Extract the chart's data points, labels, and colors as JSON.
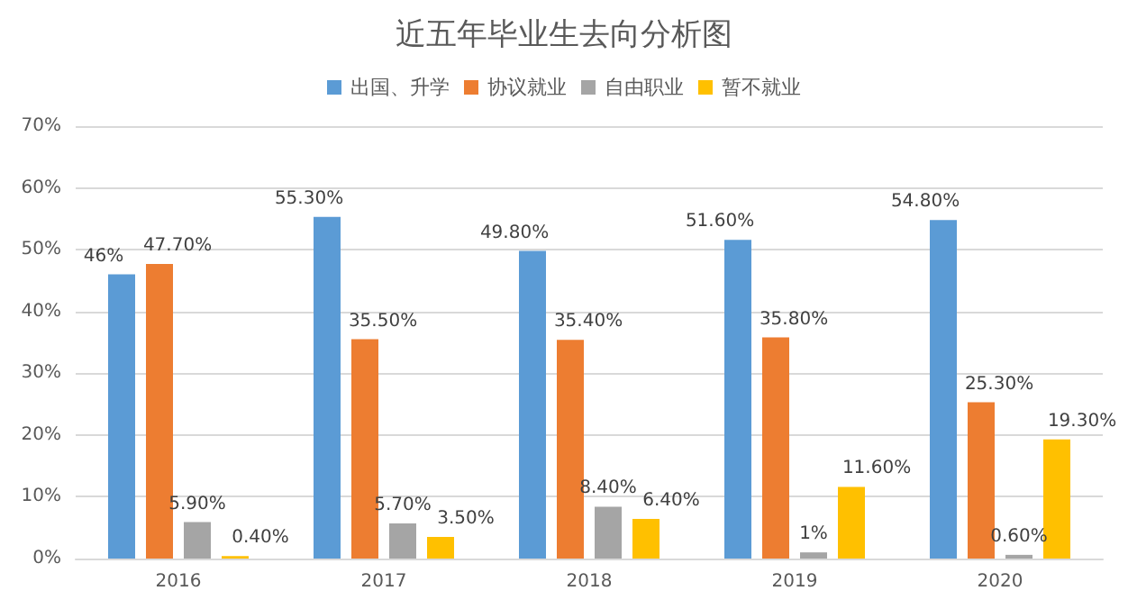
{
  "chart_data": {
    "type": "bar",
    "title": "近五年毕业生去向分析图",
    "categories": [
      "2016",
      "2017",
      "2018",
      "2019",
      "2020"
    ],
    "series": [
      {
        "name": "出国、升学",
        "color": "#5b9bd5",
        "values": [
          46,
          55.3,
          49.8,
          51.6,
          54.8
        ],
        "value_labels": [
          "46%",
          "55.30%",
          "49.80%",
          "51.60%",
          "54.80%"
        ]
      },
      {
        "name": "协议就业",
        "color": "#ed7d31",
        "values": [
          47.7,
          35.5,
          35.4,
          35.8,
          25.3
        ],
        "value_labels": [
          "47.70%",
          "35.50%",
          "35.40%",
          "35.80%",
          "25.30%"
        ]
      },
      {
        "name": "自由职业",
        "color": "#a5a5a5",
        "values": [
          5.9,
          5.7,
          8.4,
          1,
          0.6
        ],
        "value_labels": [
          "5.90%",
          "5.70%",
          "8.40%",
          "1%",
          "0.60%"
        ]
      },
      {
        "name": "暂不就业",
        "color": "#ffc000",
        "values": [
          0.4,
          3.5,
          6.4,
          11.6,
          19.3
        ],
        "value_labels": [
          "0.40%",
          "3.50%",
          "6.40%",
          "11.60%",
          "19.30%"
        ]
      }
    ],
    "ylim": [
      0,
      70
    ],
    "yticks": [
      {
        "value": 0,
        "label": "0%"
      },
      {
        "value": 10,
        "label": "10%"
      },
      {
        "value": 20,
        "label": "20%"
      },
      {
        "value": 30,
        "label": "30%"
      },
      {
        "value": 40,
        "label": "40%"
      },
      {
        "value": 50,
        "label": "50%"
      },
      {
        "value": 60,
        "label": "60%"
      },
      {
        "value": 70,
        "label": "70%"
      }
    ],
    "grid": "y",
    "legend": "top"
  }
}
